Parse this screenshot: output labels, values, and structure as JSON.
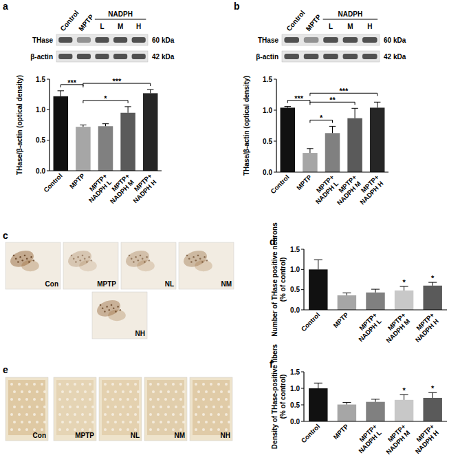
{
  "chart_data": [
    {
      "type": "bar",
      "title": "a",
      "categories": [
        "Control",
        "MPTP",
        "MPTP+ NADPH L",
        "MPTP+ NADPH M",
        "MPTP+ NADPH H"
      ],
      "values": [
        1.22,
        0.72,
        0.73,
        0.95,
        1.27
      ],
      "errors": [
        0.09,
        0.03,
        0.04,
        0.1,
        0.06
      ],
      "colors": [
        "#111111",
        "#a6a6a6",
        "#808080",
        "#5a5a5a",
        "#262626"
      ],
      "y_label": "THase/β-actin (optical density)",
      "ylim": [
        0,
        1.5
      ],
      "yticks": [
        {
          "value": 0,
          "label": "0.0"
        },
        {
          "value": 0.5,
          "label": "0.5"
        },
        {
          "value": 1,
          "label": "1.0"
        },
        {
          "value": 1.5,
          "label": "1.5"
        }
      ],
      "annotations": [
        {
          "text": "***",
          "between": [
            "Control",
            "MPTP"
          ]
        },
        {
          "text": "*",
          "between": [
            "MPTP",
            "MPTP+ NADPH M"
          ]
        },
        {
          "text": "***",
          "between": [
            "MPTP",
            "MPTP+ NADPH H"
          ]
        }
      ]
    },
    {
      "type": "bar",
      "title": "b",
      "categories": [
        "Control",
        "MPTP",
        "MPTP+ NADPH L",
        "MPTP+ NADPH M",
        "MPTP+ NADPH H"
      ],
      "values": [
        1.04,
        0.31,
        0.63,
        0.87,
        1.04
      ],
      "errors": [
        0.02,
        0.07,
        0.11,
        0.16,
        0.09
      ],
      "colors": [
        "#111111",
        "#a6a6a6",
        "#808080",
        "#5a5a5a",
        "#262626"
      ],
      "y_label": "THase/β-actin (optical density)",
      "ylim": [
        0,
        1.5
      ],
      "yticks": [
        {
          "value": 0,
          "label": "0.0"
        },
        {
          "value": 0.5,
          "label": "0.5"
        },
        {
          "value": 1,
          "label": "1.0"
        },
        {
          "value": 1.5,
          "label": "1.5"
        }
      ],
      "annotations": [
        {
          "text": "***",
          "between": [
            "Control",
            "MPTP"
          ]
        },
        {
          "text": "*",
          "between": [
            "MPTP",
            "MPTP+ NADPH L"
          ]
        },
        {
          "text": "**",
          "between": [
            "MPTP",
            "MPTP+ NADPH M"
          ]
        },
        {
          "text": "***",
          "between": [
            "MPTP",
            "MPTP+ NADPH H"
          ]
        }
      ]
    },
    {
      "type": "bar",
      "title": "d",
      "categories": [
        "Control",
        "MPTP",
        "MPTP+ NADPH L",
        "MPTP+ NADPH M",
        "MPTP+ NADPH H"
      ],
      "values": [
        1.0,
        0.36,
        0.43,
        0.48,
        0.6
      ],
      "errors": [
        0.24,
        0.06,
        0.08,
        0.1,
        0.08
      ],
      "colors": [
        "#111111",
        "#a6a6a6",
        "#808080",
        "#c8c8c8",
        "#5a5a5a"
      ],
      "y_label": "Number of THase positive neurons (% of control)",
      "ylim": [
        0,
        1.5
      ],
      "yticks": [
        {
          "value": 0,
          "label": "0.0"
        },
        {
          "value": 0.5,
          "label": "0.5"
        },
        {
          "value": 1,
          "label": "1.0"
        },
        {
          "value": 1.5,
          "label": "1.5"
        }
      ],
      "annotations": [
        {
          "text": "*",
          "category": "MPTP+ NADPH M"
        },
        {
          "text": "*",
          "category": "MPTP+ NADPH H"
        }
      ]
    },
    {
      "type": "bar",
      "title": "f",
      "categories": [
        "Control",
        "MPTP",
        "MPTP+ NADPH L",
        "MPTP+ NADPH M",
        "MPTP+ NADPH H"
      ],
      "values": [
        1.0,
        0.51,
        0.59,
        0.65,
        0.71
      ],
      "errors": [
        0.16,
        0.06,
        0.08,
        0.16,
        0.16
      ],
      "colors": [
        "#111111",
        "#a6a6a6",
        "#808080",
        "#c8c8c8",
        "#5a5a5a"
      ],
      "y_label": "Density of THase-positive fibers (% of control)",
      "ylim": [
        0,
        1.5
      ],
      "yticks": [
        {
          "value": 0,
          "label": "0.0"
        },
        {
          "value": 0.5,
          "label": "0.5"
        },
        {
          "value": 1,
          "label": "1.0"
        },
        {
          "value": 1.5,
          "label": "1.5"
        }
      ],
      "annotations": [
        {
          "text": "*",
          "category": "MPTP+ NADPH M"
        },
        {
          "text": "*",
          "category": "MPTP+ NADPH H"
        }
      ]
    }
  ],
  "blots": [
    {
      "groups": [
        "Control",
        "MPTP"
      ],
      "treatment": "NADPH",
      "doses": [
        "L",
        "M",
        "H"
      ],
      "bands": [
        {
          "name": "THase",
          "size": "60 kDa"
        },
        {
          "name": "β-actin",
          "size": "42 kDa"
        }
      ]
    },
    {
      "groups": [
        "Control",
        "MPTP"
      ],
      "treatment": "NADPH",
      "doses": [
        "L",
        "M",
        "H"
      ],
      "bands": [
        {
          "name": "THase",
          "size": "60 kDa"
        },
        {
          "name": "β-actin",
          "size": "42 kDa"
        }
      ]
    }
  ],
  "micrographs": [
    {
      "title": "c",
      "panels": [
        "Con",
        "MPTP",
        "NL",
        "NM",
        "NH"
      ]
    },
    {
      "title": "e",
      "panels": [
        "Con",
        "MPTP",
        "NL",
        "NM",
        "NH"
      ]
    }
  ]
}
